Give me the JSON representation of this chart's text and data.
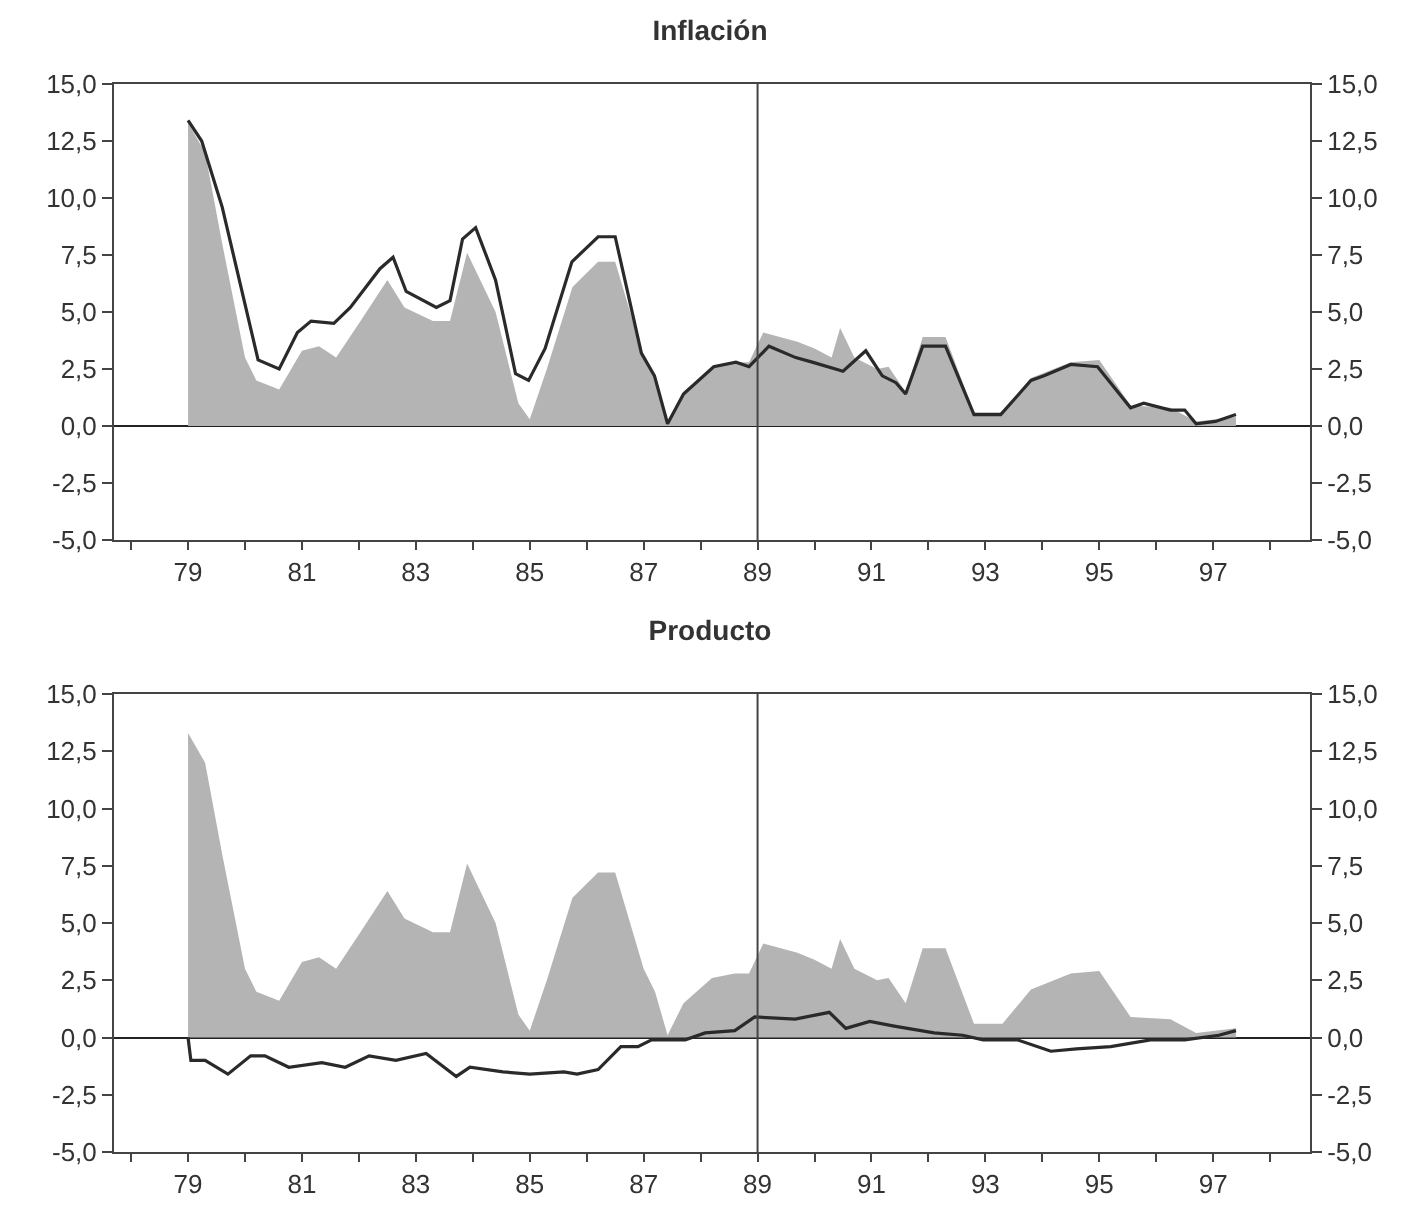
{
  "chart_data": [
    {
      "type": "line",
      "title": "Inflación",
      "grid": false,
      "xlim": [
        77.7,
        98.7
      ],
      "xticks": [
        {
          "value": 78,
          "label": null
        },
        79,
        {
          "value": 80,
          "label": null
        },
        81,
        {
          "value": 82,
          "label": null
        },
        83,
        {
          "value": 84,
          "label": null
        },
        85,
        {
          "value": 86,
          "label": null
        },
        87,
        {
          "value": 88,
          "label": null
        },
        89,
        {
          "value": 90,
          "label": null
        },
        91,
        {
          "value": 92,
          "label": null
        },
        93,
        {
          "value": 94,
          "label": null
        },
        95,
        {
          "value": 96,
          "label": null
        },
        97,
        {
          "value": 98,
          "label": null
        }
      ],
      "ylim": [
        -5,
        15
      ],
      "yticks": [
        {
          "value": -5,
          "label": "-5,0"
        },
        {
          "value": -2.5,
          "label": "-2,5"
        },
        {
          "value": 0,
          "label": "0,0"
        },
        {
          "value": 2.5,
          "label": "2,5"
        },
        {
          "value": 5,
          "label": "5,0"
        },
        {
          "value": 7.5,
          "label": "7,5"
        },
        {
          "value": 10,
          "label": "10,0"
        },
        {
          "value": 12.5,
          "label": "12,5"
        },
        {
          "value": 15,
          "label": "15,0"
        }
      ],
      "y2lim": [
        -5,
        15
      ],
      "y2ticks": [
        {
          "value": -5,
          "label": "-5,0"
        },
        {
          "value": -2.5,
          "label": "-2,5"
        },
        {
          "value": 0,
          "label": "0,0"
        },
        {
          "value": 2.5,
          "label": "2,5"
        },
        {
          "value": 5,
          "label": "5,0"
        },
        {
          "value": 7.5,
          "label": "7,5"
        },
        {
          "value": 10,
          "label": "10,0"
        },
        {
          "value": 12.5,
          "label": "12,5"
        },
        {
          "value": 15,
          "label": "15,0"
        }
      ],
      "ref_lines": [
        {
          "axis": "x",
          "value": 89,
          "color": "#444444"
        }
      ],
      "series": [
        {
          "type": "area",
          "color": "#b4b4b4",
          "x": [
            79.0,
            79.3,
            79.6,
            80.0,
            80.2,
            80.6,
            81.0,
            81.3,
            81.6,
            82.0,
            82.5,
            82.8,
            83.3,
            83.6,
            83.9,
            84.4,
            84.8,
            85.0,
            85.3,
            85.75,
            86.2,
            86.5,
            87.0,
            87.2,
            87.42,
            87.7,
            88.2,
            88.6,
            88.85,
            89.1,
            89.7,
            90.0,
            90.3,
            90.45,
            90.7,
            91.1,
            91.3,
            91.6,
            91.9,
            92.3,
            92.8,
            93.3,
            93.8,
            94.5,
            95.0,
            95.55,
            96.25,
            96.7,
            97.4
          ],
          "values": [
            13.3,
            12.0,
            8.0,
            3.0,
            2.0,
            1.6,
            3.3,
            3.5,
            3.0,
            4.5,
            6.4,
            5.2,
            4.6,
            4.6,
            7.6,
            5.0,
            1.0,
            0.3,
            2.5,
            6.1,
            7.2,
            7.2,
            3.0,
            2.0,
            0.1,
            1.5,
            2.6,
            2.8,
            2.8,
            4.1,
            3.7,
            3.4,
            3.0,
            4.3,
            3.0,
            2.5,
            2.6,
            1.5,
            3.9,
            3.9,
            0.6,
            0.6,
            2.1,
            2.8,
            2.9,
            0.9,
            0.8,
            0.2,
            0.4
          ]
        },
        {
          "type": "line",
          "color": "#2a2a2a",
          "x": [
            79.0,
            79.24,
            79.6,
            80.23,
            80.6,
            80.92,
            81.16,
            81.56,
            81.85,
            82.37,
            82.6,
            82.83,
            83.36,
            83.6,
            83.82,
            84.05,
            84.4,
            84.75,
            84.98,
            85.27,
            85.74,
            86.2,
            86.5,
            86.96,
            87.19,
            87.42,
            87.7,
            88.23,
            88.62,
            88.85,
            89.2,
            89.67,
            89.96,
            90.5,
            90.9,
            91.19,
            91.43,
            91.6,
            91.9,
            92.3,
            92.8,
            93.27,
            93.8,
            94.03,
            94.5,
            94.97,
            95.55,
            95.78,
            96.25,
            96.5,
            96.7,
            97.04,
            97.4
          ],
          "values": [
            13.4,
            12.5,
            9.6,
            2.9,
            2.5,
            4.1,
            4.6,
            4.5,
            5.2,
            6.9,
            7.4,
            5.9,
            5.2,
            5.5,
            8.2,
            8.7,
            6.4,
            2.3,
            2.0,
            3.4,
            7.2,
            8.3,
            8.3,
            3.2,
            2.2,
            0.1,
            1.4,
            2.6,
            2.8,
            2.6,
            3.5,
            3.0,
            2.8,
            2.4,
            3.3,
            2.2,
            1.9,
            1.4,
            3.5,
            3.5,
            0.5,
            0.5,
            2.0,
            2.2,
            2.7,
            2.6,
            0.8,
            1.0,
            0.7,
            0.7,
            0.1,
            0.2,
            0.5
          ]
        }
      ]
    },
    {
      "type": "line",
      "title": "Producto",
      "grid": false,
      "xlim": [
        77.7,
        98.7
      ],
      "xticks": [
        {
          "value": 78,
          "label": null
        },
        79,
        {
          "value": 80,
          "label": null
        },
        81,
        {
          "value": 82,
          "label": null
        },
        83,
        {
          "value": 84,
          "label": null
        },
        85,
        {
          "value": 86,
          "label": null
        },
        87,
        {
          "value": 88,
          "label": null
        },
        89,
        {
          "value": 90,
          "label": null
        },
        91,
        {
          "value": 92,
          "label": null
        },
        93,
        {
          "value": 94,
          "label": null
        },
        95,
        {
          "value": 96,
          "label": null
        },
        97,
        {
          "value": 98,
          "label": null
        }
      ],
      "ylim": [
        -5,
        15
      ],
      "yticks": [
        {
          "value": -5,
          "label": "-5,0"
        },
        {
          "value": -2.5,
          "label": "-2,5"
        },
        {
          "value": 0,
          "label": "0,0"
        },
        {
          "value": 2.5,
          "label": "2,5"
        },
        {
          "value": 5,
          "label": "5,0"
        },
        {
          "value": 7.5,
          "label": "7,5"
        },
        {
          "value": 10,
          "label": "10,0"
        },
        {
          "value": 12.5,
          "label": "12,5"
        },
        {
          "value": 15,
          "label": "15,0"
        }
      ],
      "y2lim": [
        -5,
        15
      ],
      "y2ticks": [
        {
          "value": -5,
          "label": "-5,0"
        },
        {
          "value": -2.5,
          "label": "-2,5"
        },
        {
          "value": 0,
          "label": "0,0"
        },
        {
          "value": 2.5,
          "label": "2,5"
        },
        {
          "value": 5,
          "label": "5,0"
        },
        {
          "value": 7.5,
          "label": "7,5"
        },
        {
          "value": 10,
          "label": "10,0"
        },
        {
          "value": 12.5,
          "label": "12,5"
        },
        {
          "value": 15,
          "label": "15,0"
        }
      ],
      "ref_lines": [
        {
          "axis": "x",
          "value": 89,
          "color": "#444444"
        }
      ],
      "series": [
        {
          "type": "area",
          "color": "#b4b4b4",
          "x": [
            79.0,
            79.3,
            79.6,
            80.0,
            80.2,
            80.6,
            81.0,
            81.3,
            81.6,
            82.0,
            82.5,
            82.8,
            83.3,
            83.6,
            83.9,
            84.4,
            84.8,
            85.0,
            85.3,
            85.75,
            86.2,
            86.5,
            87.0,
            87.2,
            87.42,
            87.7,
            88.2,
            88.6,
            88.85,
            89.1,
            89.7,
            90.0,
            90.3,
            90.45,
            90.7,
            91.1,
            91.3,
            91.6,
            91.9,
            92.3,
            92.8,
            93.3,
            93.8,
            94.5,
            95.0,
            95.55,
            96.25,
            96.7,
            97.4
          ],
          "values": [
            13.3,
            12.0,
            8.0,
            3.0,
            2.0,
            1.6,
            3.3,
            3.5,
            3.0,
            4.5,
            6.4,
            5.2,
            4.6,
            4.6,
            7.6,
            5.0,
            1.0,
            0.3,
            2.5,
            6.1,
            7.2,
            7.2,
            3.0,
            2.0,
            0.1,
            1.5,
            2.6,
            2.8,
            2.8,
            4.1,
            3.7,
            3.4,
            3.0,
            4.3,
            3.0,
            2.5,
            2.6,
            1.5,
            3.9,
            3.9,
            0.6,
            0.6,
            2.1,
            2.8,
            2.9,
            0.9,
            0.8,
            0.2,
            0.4
          ]
        },
        {
          "type": "line",
          "color": "#2a2a2a",
          "x": [
            79.0,
            79.05,
            79.3,
            79.7,
            80.1,
            80.35,
            80.77,
            81.35,
            81.76,
            82.18,
            82.65,
            83.18,
            83.71,
            83.95,
            84.53,
            85.0,
            85.6,
            85.83,
            86.2,
            86.6,
            86.9,
            87.14,
            87.73,
            88.08,
            88.6,
            88.95,
            89.66,
            90.26,
            90.55,
            90.97,
            91.4,
            92.1,
            92.6,
            92.96,
            93.56,
            94.15,
            94.6,
            95.2,
            95.9,
            96.5,
            97.1,
            97.4
          ],
          "values": [
            0,
            -1.0,
            -1.0,
            -1.6,
            -0.8,
            -0.8,
            -1.3,
            -1.1,
            -1.3,
            -0.8,
            -1.0,
            -0.7,
            -1.7,
            -1.3,
            -1.5,
            -1.6,
            -1.5,
            -1.6,
            -1.4,
            -0.4,
            -0.4,
            -0.1,
            -0.1,
            0.2,
            0.3,
            0.9,
            0.8,
            1.1,
            0.4,
            0.7,
            0.5,
            0.2,
            0.1,
            -0.1,
            -0.1,
            -0.6,
            -0.5,
            -0.4,
            -0.1,
            -0.1,
            0.1,
            0.3
          ]
        }
      ]
    }
  ]
}
